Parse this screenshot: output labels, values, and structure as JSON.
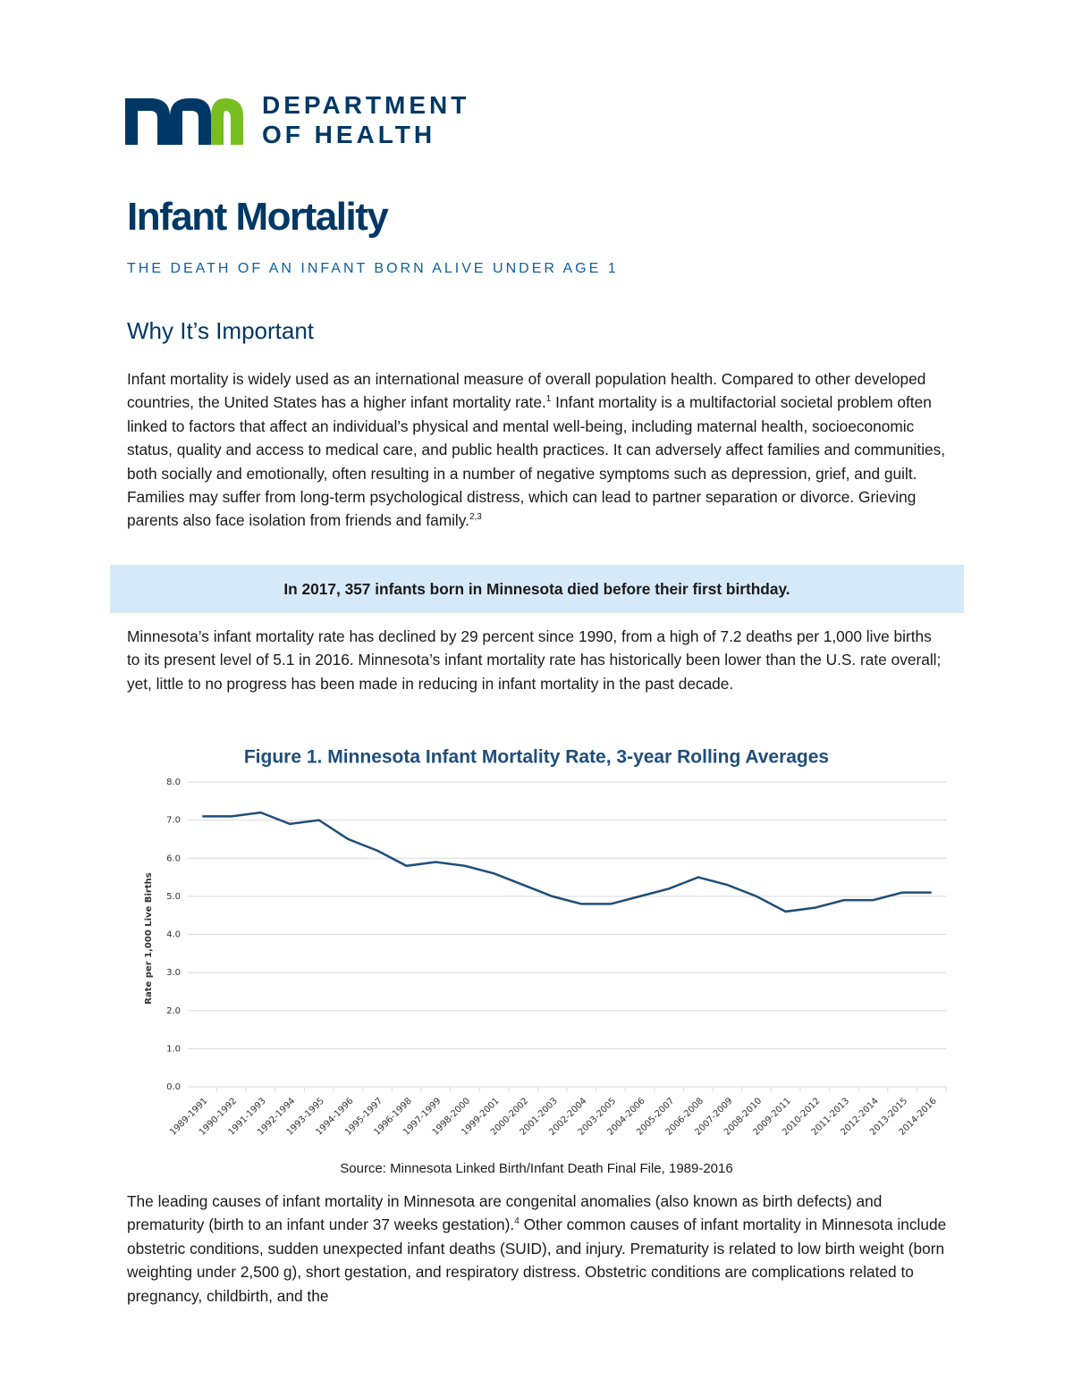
{
  "header": {
    "org_line1": "DEPARTMENT",
    "org_line2": "OF HEALTH"
  },
  "title": "Infant Mortality",
  "subtitle": "THE DEATH OF AN INFANT BORN ALIVE UNDER AGE 1",
  "section_heading": "Why It’s Important",
  "paragraph1": [
    {
      "text": "Infant mortality is widely used as an international measure of overall population health. Compared to other developed countries, the United States has a higher infant mortality rate."
    },
    {
      "sup": "1"
    },
    {
      "text": " Infant mortality is a multifactorial societal problem often linked to factors that affect an individual’s physical and mental well-being, including maternal health, socioeconomic status, quality and access to medical care, and public health practices. It can adversely affect families and communities, both socially and emotionally, often resulting in a number of negative symptoms such as depression, grief, and guilt. Families may suffer from long-term psychological distress, which can lead to partner separation or divorce. Grieving parents also face isolation from friends and family."
    },
    {
      "sup": "2,3"
    }
  ],
  "callout": "In 2017, 357 infants born in Minnesota died before their first birthday.",
  "paragraph2": [
    {
      "text": "Minnesota’s infant mortality rate has declined by 29 percent since 1990, from a high of 7.2 deaths per 1,000 live births to its present level of 5.1 in 2016. Minnesota’s infant mortality rate has historically been lower than the U.S. rate overall; yet, little to no progress has been made in reducing in infant mortality in the past decade."
    }
  ],
  "chart_data": {
    "type": "line",
    "title": "Figure 1. Minnesota Infant Mortality Rate, 3-year Rolling Averages",
    "y_label": "Rate per 1,000 Live Births",
    "categories": [
      "1989-1991",
      "1990-1992",
      "1991-1993",
      "1992-1994",
      "1993-1995",
      "1994-1996",
      "1995-1997",
      "1996-1998",
      "1997-1999",
      "1998-2000",
      "1999-2001",
      "2000-2002",
      "2001-2003",
      "2002-2004",
      "2003-2005",
      "2004-2006",
      "2005-2007",
      "2006-2008",
      "2007-2009",
      "2008-2010",
      "2009-2011",
      "2010-2012",
      "2011-2013",
      "2012-2014",
      "2013-2015",
      "2014-2016"
    ],
    "values": [
      7.1,
      7.1,
      7.2,
      6.9,
      7.0,
      6.5,
      6.2,
      5.8,
      5.9,
      5.8,
      5.6,
      5.3,
      5.0,
      4.8,
      4.8,
      5.0,
      5.2,
      5.5,
      5.3,
      5.0,
      4.6,
      4.7,
      4.9,
      4.9,
      5.1,
      5.1
    ],
    "color": "#1f4e79",
    "ylim": [
      0,
      8
    ],
    "yticks": [
      {
        "value": 0,
        "label": "0.0"
      },
      {
        "value": 1,
        "label": "1.0"
      },
      {
        "value": 2,
        "label": "2.0"
      },
      {
        "value": 3,
        "label": "3.0"
      },
      {
        "value": 4,
        "label": "4.0"
      },
      {
        "value": 5,
        "label": "5.0"
      },
      {
        "value": 6,
        "label": "6.0"
      },
      {
        "value": 7,
        "label": "7.0"
      },
      {
        "value": 8,
        "label": "8.0"
      }
    ],
    "grid": true,
    "source": "Source: Minnesota Linked Birth/Infant Death Final File, 1989-2016"
  },
  "paragraph3": [
    {
      "text": "The leading causes of infant mortality in Minnesota are congenital anomalies (also known as birth defects) and prematurity (birth to an infant under 37 weeks gestation)."
    },
    {
      "sup": "4"
    },
    {
      "text": " Other common causes of infant mortality in Minnesota include obstetric conditions, sudden unexpected infant deaths (SUID), and injury. Prematurity is related to low birth weight (born weighting under 2,500 g), short gestation, and respiratory distress. Obstetric conditions are complications related to pregnancy, childbirth, and the"
    }
  ]
}
